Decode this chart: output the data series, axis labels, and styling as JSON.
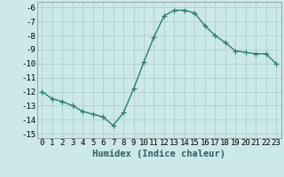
{
  "x": [
    0,
    1,
    2,
    3,
    4,
    5,
    6,
    7,
    8,
    9,
    10,
    11,
    12,
    13,
    14,
    15,
    16,
    17,
    18,
    19,
    20,
    21,
    22,
    23
  ],
  "y": [
    -12.0,
    -12.5,
    -12.7,
    -13.0,
    -13.4,
    -13.6,
    -13.8,
    -14.4,
    -13.5,
    -11.8,
    -9.9,
    -8.1,
    -6.6,
    -6.2,
    -6.2,
    -6.4,
    -7.3,
    -8.0,
    -8.5,
    -9.1,
    -9.2,
    -9.3,
    -9.3,
    -10.0
  ],
  "line_color": "#2d7d6e",
  "marker": "+",
  "marker_size": 4,
  "bg_color": "#cce8e8",
  "grid_color": "#b0cece",
  "xlabel": "Humidex (Indice chaleur)",
  "xlim": [
    -0.5,
    23.5
  ],
  "ylim": [
    -15.3,
    -5.6
  ],
  "yticks": [
    -15,
    -14,
    -13,
    -12,
    -11,
    -10,
    -9,
    -8,
    -7,
    -6
  ],
  "xticks": [
    0,
    1,
    2,
    3,
    4,
    5,
    6,
    7,
    8,
    9,
    10,
    11,
    12,
    13,
    14,
    15,
    16,
    17,
    18,
    19,
    20,
    21,
    22,
    23
  ],
  "tick_fontsize": 6.5,
  "xlabel_fontsize": 7.5,
  "line_width": 1.0
}
